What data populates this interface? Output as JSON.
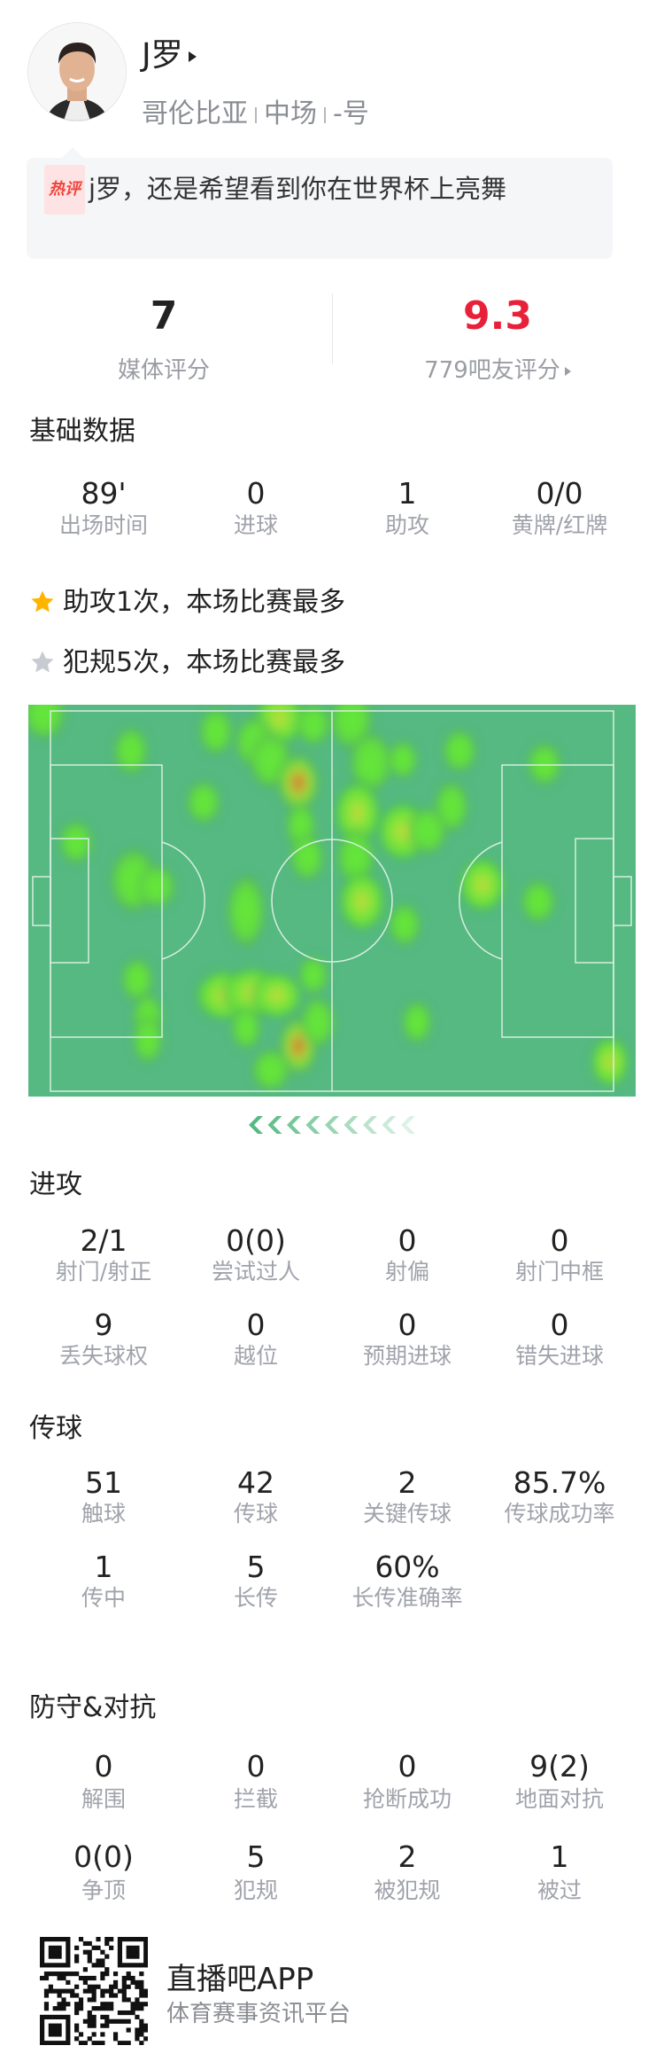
{
  "player": {
    "name": "J罗",
    "country": "哥伦比亚",
    "position": "中场",
    "number": "-号"
  },
  "hot_comment": {
    "badge": "热评",
    "text": "j罗，还是希望看到你在世界杯上亮舞"
  },
  "ratings": {
    "media_value": "7",
    "media_label": "媒体评分",
    "fan_value": "9.3",
    "fan_label": "779吧友评分",
    "fan_color": "#e8203a"
  },
  "basic": {
    "title": "基础数据",
    "stats": [
      {
        "value": "89'",
        "label": "出场时间"
      },
      {
        "value": "0",
        "label": "进球"
      },
      {
        "value": "1",
        "label": "助攻"
      },
      {
        "value": "0/0",
        "label": "黄牌/红牌"
      }
    ]
  },
  "highlights": [
    {
      "icon": "star-gold-icon",
      "text": "助攻1次，本场比赛最多",
      "color": "#ffb400"
    },
    {
      "icon": "star-silver-icon",
      "text": "犯规5次，本场比赛最多",
      "color": "#c8cbd2"
    }
  ],
  "heatmap": {
    "pitch_color": "#55b981",
    "line_color": "#d7eee0",
    "attack_direction": "left"
  },
  "attack": {
    "title": "进攻",
    "rows": [
      [
        {
          "value": "2/1",
          "label": "射门/射正"
        },
        {
          "value": "0(0)",
          "label": "尝试过人"
        },
        {
          "value": "0",
          "label": "射偏"
        },
        {
          "value": "0",
          "label": "射门中框"
        }
      ],
      [
        {
          "value": "9",
          "label": "丢失球权"
        },
        {
          "value": "0",
          "label": "越位"
        },
        {
          "value": "0",
          "label": "预期进球"
        },
        {
          "value": "0",
          "label": "错失进球"
        }
      ]
    ]
  },
  "passing": {
    "title": "传球",
    "rows": [
      [
        {
          "value": "51",
          "label": "触球"
        },
        {
          "value": "42",
          "label": "传球"
        },
        {
          "value": "2",
          "label": "关键传球"
        },
        {
          "value": "85.7%",
          "label": "传球成功率"
        }
      ],
      [
        {
          "value": "1",
          "label": "传中"
        },
        {
          "value": "5",
          "label": "长传"
        },
        {
          "value": "60%",
          "label": "长传准确率"
        }
      ]
    ]
  },
  "defense": {
    "title": "防守&对抗",
    "rows": [
      [
        {
          "value": "0",
          "label": "解围"
        },
        {
          "value": "0",
          "label": "拦截"
        },
        {
          "value": "0",
          "label": "抢断成功"
        },
        {
          "value": "9(2)",
          "label": "地面对抗"
        }
      ],
      [
        {
          "value": "0(0)",
          "label": "争顶"
        },
        {
          "value": "5",
          "label": "犯规"
        },
        {
          "value": "2",
          "label": "被犯规"
        },
        {
          "value": "1",
          "label": "被过"
        }
      ]
    ]
  },
  "footer": {
    "app_name": "直播吧APP",
    "tagline": "体育赛事资讯平台"
  }
}
